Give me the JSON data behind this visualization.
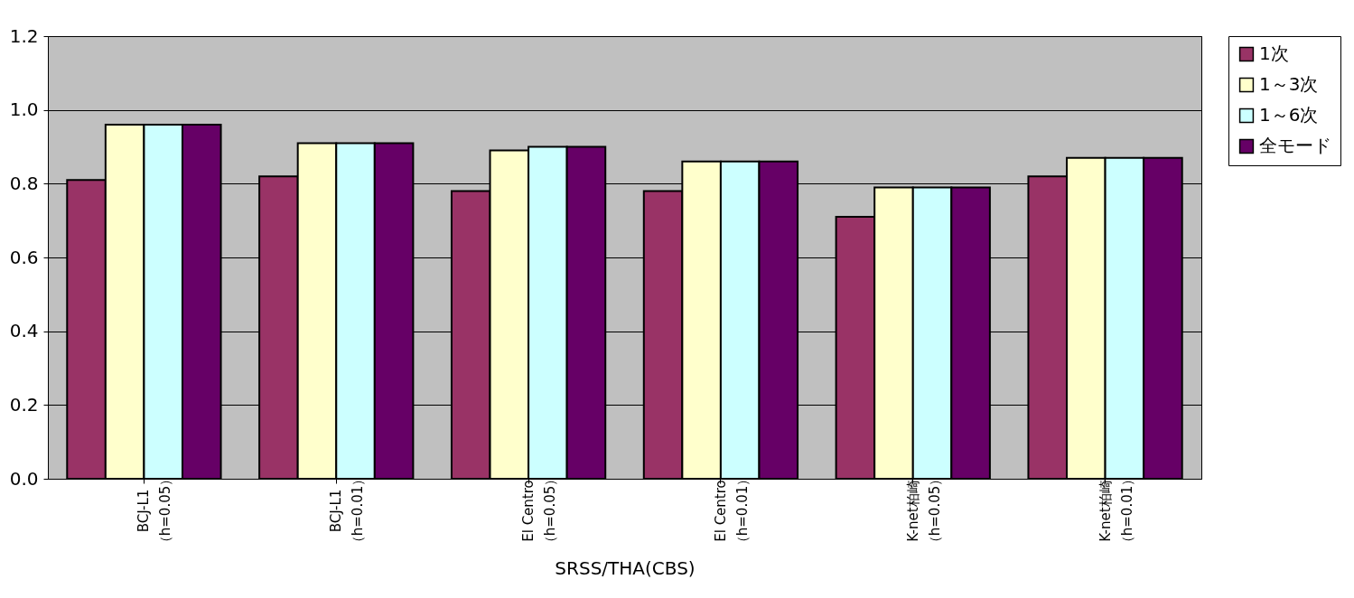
{
  "chart_data": {
    "type": "bar",
    "xlabel": "SRSS/THA(CBS)",
    "categories": [
      "BCJ-L1（h=0.05）",
      "BCJ-L1（h=0.01）",
      "El Centro（h=0.05）",
      "El Centro（h=0.01）",
      "K-net柏崎（h=0.05）",
      "K-net柏崎（h=0.01）"
    ],
    "series": [
      {
        "name": "1次",
        "color": "#993366",
        "values": [
          0.81,
          0.82,
          0.78,
          0.78,
          0.71,
          0.82
        ]
      },
      {
        "name": "1～3次",
        "color": "#ffffcc",
        "values": [
          0.96,
          0.91,
          0.89,
          0.86,
          0.79,
          0.87
        ]
      },
      {
        "name": "1～6次",
        "color": "#ccffff",
        "values": [
          0.96,
          0.91,
          0.9,
          0.86,
          0.79,
          0.87
        ]
      },
      {
        "name": "全モード",
        "color": "#660066",
        "values": [
          0.96,
          0.91,
          0.9,
          0.86,
          0.79,
          0.87
        ]
      }
    ],
    "ylim": [
      0,
      1.2
    ],
    "yticks": [
      {
        "value": 0,
        "label": "0.0"
      },
      0.2,
      0.4,
      0.6,
      0.8,
      {
        "value": 1,
        "label": "1.0"
      },
      1.2
    ],
    "grid": "y",
    "legend": "right"
  }
}
